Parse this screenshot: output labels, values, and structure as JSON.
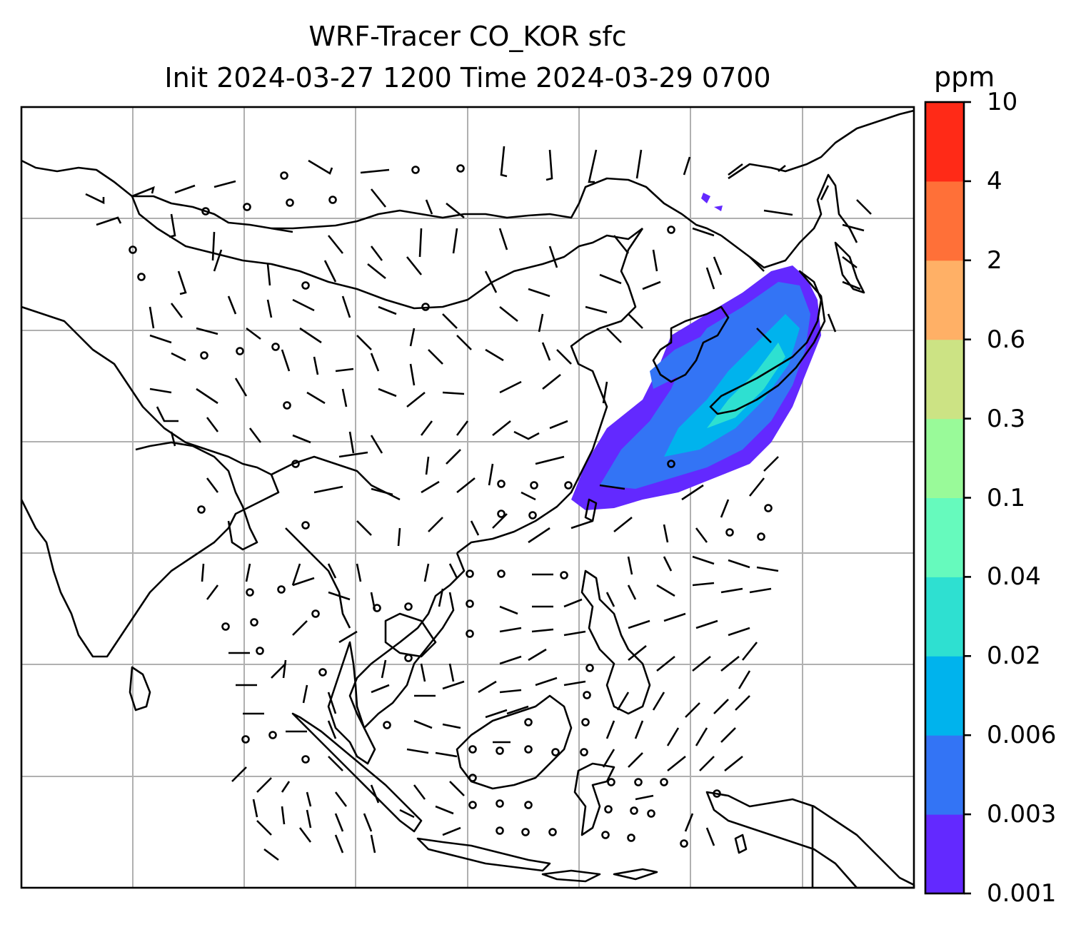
{
  "title": {
    "line1": "WRF-Tracer CO_KOR sfc",
    "line2": "Init 2024-03-27 1200 Time 2024-03-29 0700"
  },
  "colorbar": {
    "unit": "ppm",
    "levels": [
      "0.001",
      "0.003",
      "0.006",
      "0.02",
      "0.04",
      "0.1",
      "0.3",
      "0.6",
      "2",
      "4",
      "10"
    ],
    "colors": [
      "#6329ff",
      "#3374f5",
      "#00b3ed",
      "#2ee0d1",
      "#66fabd",
      "#99fa99",
      "#cce384",
      "#ffb066",
      "#ff7038",
      "#ff2a17"
    ]
  },
  "map": {
    "grid": true,
    "features": [
      "coastlines",
      "country-borders",
      "wind-barbs",
      "CO_KOR-tracer-plume"
    ]
  }
}
